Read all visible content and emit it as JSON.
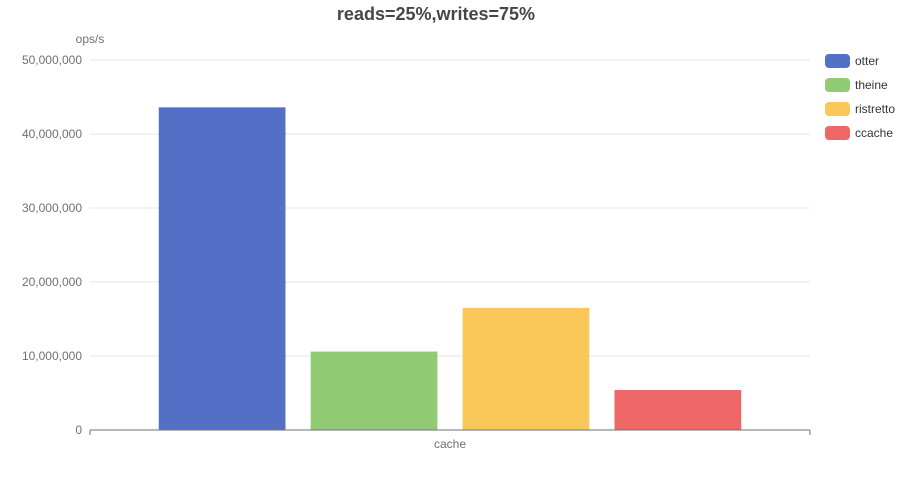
{
  "chart_data": {
    "type": "bar",
    "title": "reads=25%,writes=75%",
    "xlabel": "",
    "ylabel": "ops/s",
    "categories": [
      "cache"
    ],
    "series": [
      {
        "name": "otter",
        "values": [
          43600000
        ],
        "color": "#5470c6"
      },
      {
        "name": "theine",
        "values": [
          10600000
        ],
        "color": "#91cc75"
      },
      {
        "name": "ristretto",
        "values": [
          16500000
        ],
        "color": "#fac858"
      },
      {
        "name": "ccache",
        "values": [
          5400000
        ],
        "color": "#ee6666"
      }
    ],
    "ylim": [
      0,
      50000000
    ],
    "yticks": [
      "0",
      "10,000,000",
      "20,000,000",
      "30,000,000",
      "40,000,000",
      "50,000,000"
    ],
    "grid": true,
    "legend_position": "top-right"
  }
}
